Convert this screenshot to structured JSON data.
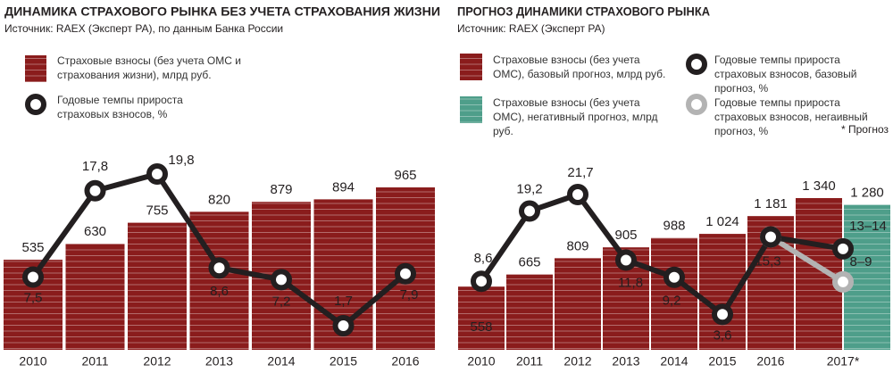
{
  "chart_data": [
    {
      "type": "combo",
      "title": "ДИНАМИКА СТРАХОВОГО РЫНКА БЕЗ УЧЕТА СТРАХОВАНИЯ ЖИЗНИ",
      "subtitle": "Источник: RAEX (Эксперт РА), по данным Банка России",
      "categories": [
        "2010",
        "2011",
        "2012",
        "2013",
        "2014",
        "2015",
        "2016"
      ],
      "series": [
        {
          "name": "Страховые взносы (без учета ОМС и страхования жизни), млрд руб.",
          "type": "bar",
          "color": "#8a1c1c",
          "values": [
            535,
            630,
            755,
            820,
            879,
            894,
            965
          ]
        },
        {
          "name": "Годовые темпы прироста страховых взносов, %",
          "type": "line",
          "color": "#231f20",
          "values": [
            7.5,
            17.8,
            19.8,
            8.6,
            7.2,
            1.7,
            7.9
          ],
          "value_labels": [
            "7,5",
            "17,8",
            "19,8",
            "8,6",
            "7,2",
            "1,7",
            "7,9"
          ]
        }
      ]
    },
    {
      "type": "combo",
      "title": "ПРОГНОЗ ДИНАМИКИ СТРАХОВОГО РЫНКА",
      "subtitle": "Источник: RAEX (Эксперт РА)",
      "note": "* Прогноз",
      "categories": [
        "2010",
        "2011",
        "2012",
        "2013",
        "2014",
        "2015",
        "2016",
        "2017*"
      ],
      "series": [
        {
          "name": "Страховые взносы (без учета ОМС), базовый прогноз, млрд руб.",
          "type": "bar",
          "color": "#8a1c1c",
          "values": [
            558,
            665,
            809,
            905,
            988,
            1024,
            1181,
            1340
          ],
          "value_labels": [
            "558",
            "665",
            "809",
            "905",
            "988",
            "1 024",
            "1 181",
            "1 340"
          ]
        },
        {
          "name": "Страховые взносы (без учета ОМС), негативный прогноз, млрд руб.",
          "type": "bar",
          "color": "#4e9e8a",
          "values": [
            null,
            null,
            null,
            null,
            null,
            null,
            null,
            1280
          ],
          "value_labels": [
            null,
            null,
            null,
            null,
            null,
            null,
            null,
            "1 280"
          ]
        },
        {
          "name": "Годовые темпы прироста страховых взносов, базовый прогноз, %",
          "type": "line",
          "color": "#231f20",
          "values": [
            8.6,
            19.2,
            21.7,
            11.8,
            9.2,
            3.6,
            15.3,
            13.5
          ],
          "value_labels": [
            "8,6",
            "19,2",
            "21,7",
            "11,8",
            "9,2",
            "3,6",
            "15,3",
            "13–14"
          ]
        },
        {
          "name": "Годовые темпы прироста страховых взносов, негаивный прогноз, %",
          "type": "line",
          "color": "#b3b3b3",
          "values": [
            null,
            null,
            null,
            null,
            null,
            null,
            15.3,
            8.5
          ],
          "value_labels": [
            null,
            null,
            null,
            null,
            null,
            null,
            null,
            "8–9"
          ]
        }
      ]
    }
  ]
}
